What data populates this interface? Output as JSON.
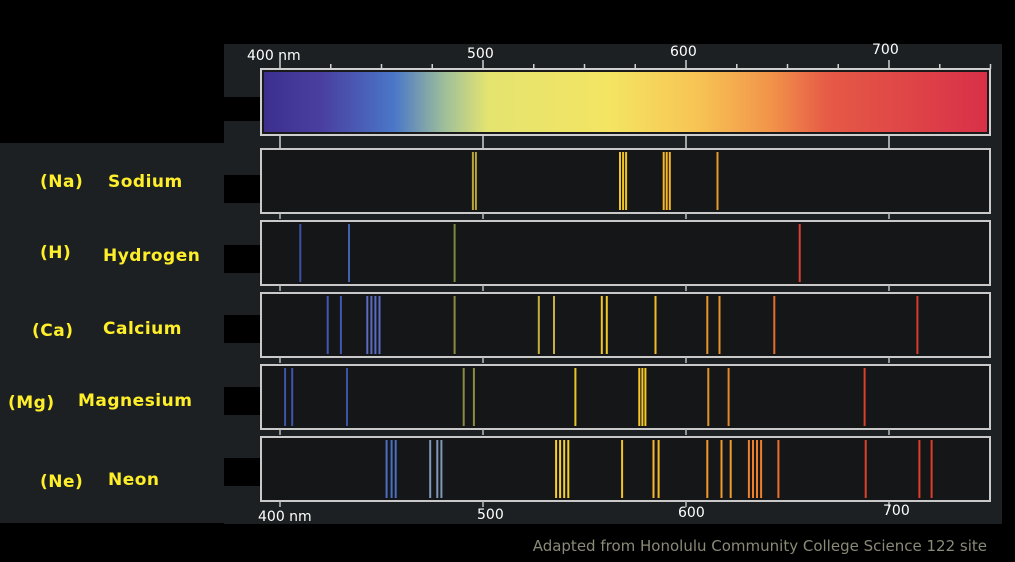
{
  "axis": {
    "top_labels": [
      "400 nm",
      "500",
      "600",
      "700"
    ],
    "bottom_labels": [
      "400 nm",
      "500",
      "600",
      "700"
    ],
    "tick_values": [
      400,
      500,
      600,
      700
    ]
  },
  "reference": {
    "name": "visible-spectrum",
    "nm_range": [
      400,
      750
    ]
  },
  "elements": [
    {
      "symbol": "(Na)",
      "name": "Sodium",
      "lines": [
        {
          "nm": 495,
          "color": "#b9a53a"
        },
        {
          "nm": 496.5,
          "color": "#b9a53a"
        },
        {
          "nm": 567.5,
          "color": "#f0c427"
        },
        {
          "nm": 569,
          "color": "#f0c427"
        },
        {
          "nm": 570.5,
          "color": "#f0c427"
        },
        {
          "nm": 589,
          "color": "#f5b628"
        },
        {
          "nm": 590.5,
          "color": "#f5b628"
        },
        {
          "nm": 592,
          "color": "#f5b628"
        },
        {
          "nm": 615.5,
          "color": "#e69a2c"
        }
      ]
    },
    {
      "symbol": "(H)",
      "name": "Hydrogen",
      "lines": [
        {
          "nm": 410,
          "color": "#3e4fa6"
        },
        {
          "nm": 434,
          "color": "#3f63ad"
        },
        {
          "nm": 486,
          "color": "#7a8a3c"
        },
        {
          "nm": 656,
          "color": "#d8412e"
        }
      ]
    },
    {
      "symbol": "(Ca)",
      "name": "Calcium",
      "lines": [
        {
          "nm": 423.5,
          "color": "#4257b2"
        },
        {
          "nm": 430,
          "color": "#4257b2"
        },
        {
          "nm": 443,
          "color": "#5a6bc0"
        },
        {
          "nm": 445,
          "color": "#5a6bc0"
        },
        {
          "nm": 447,
          "color": "#5a6bc0"
        },
        {
          "nm": 449,
          "color": "#5a6bc0"
        },
        {
          "nm": 486,
          "color": "#8c8a3e"
        },
        {
          "nm": 527.5,
          "color": "#c6b23a"
        },
        {
          "nm": 535,
          "color": "#c6b23a"
        },
        {
          "nm": 558.5,
          "color": "#f0c826"
        },
        {
          "nm": 561,
          "color": "#f0c826"
        },
        {
          "nm": 585,
          "color": "#f0bb2a"
        },
        {
          "nm": 610.5,
          "color": "#e9932c"
        },
        {
          "nm": 616.5,
          "color": "#e9932c"
        },
        {
          "nm": 643.5,
          "color": "#e36f2c"
        },
        {
          "nm": 714,
          "color": "#d63a2c"
        }
      ]
    },
    {
      "symbol": "(Mg)",
      "name": "Magnesium",
      "lines": [
        {
          "nm": 402.5,
          "color": "#3e55aa"
        },
        {
          "nm": 406,
          "color": "#3e55aa"
        },
        {
          "nm": 433,
          "color": "#3a55a8"
        },
        {
          "nm": 490.5,
          "color": "#8a8c40"
        },
        {
          "nm": 495.5,
          "color": "#8a8c40"
        },
        {
          "nm": 545.5,
          "color": "#e6c628"
        },
        {
          "nm": 577,
          "color": "#f5c726"
        },
        {
          "nm": 578.5,
          "color": "#f5c726"
        },
        {
          "nm": 580,
          "color": "#f5c726"
        },
        {
          "nm": 611,
          "color": "#e3932c"
        },
        {
          "nm": 621,
          "color": "#e3862c"
        },
        {
          "nm": 688,
          "color": "#d8402c"
        }
      ]
    },
    {
      "symbol": "(Ne)",
      "name": "Neon",
      "lines": [
        {
          "nm": 452.5,
          "color": "#4a6fc0"
        },
        {
          "nm": 455,
          "color": "#4a6fc0"
        },
        {
          "nm": 457,
          "color": "#4a6fc0"
        },
        {
          "nm": 474,
          "color": "#7f98b8"
        },
        {
          "nm": 477.5,
          "color": "#7f98b8"
        },
        {
          "nm": 479.5,
          "color": "#7f98b8"
        },
        {
          "nm": 536,
          "color": "#f5d02a"
        },
        {
          "nm": 538,
          "color": "#f5d02a"
        },
        {
          "nm": 540,
          "color": "#f5d02a"
        },
        {
          "nm": 542,
          "color": "#f5d02a"
        },
        {
          "nm": 568.5,
          "color": "#f5c228"
        },
        {
          "nm": 584,
          "color": "#f5b82a"
        },
        {
          "nm": 586.5,
          "color": "#f5b82a"
        },
        {
          "nm": 610.5,
          "color": "#ee9a2c"
        },
        {
          "nm": 617.5,
          "color": "#ee9a2c"
        },
        {
          "nm": 622,
          "color": "#ee9a2c"
        },
        {
          "nm": 631,
          "color": "#ee7f2c"
        },
        {
          "nm": 633,
          "color": "#ee7f2c"
        },
        {
          "nm": 635,
          "color": "#ee7f2c"
        },
        {
          "nm": 637,
          "color": "#ee7f2c"
        },
        {
          "nm": 645.5,
          "color": "#e8702c"
        },
        {
          "nm": 688.5,
          "color": "#dd432c"
        },
        {
          "nm": 715,
          "color": "#dd3e2c"
        },
        {
          "nm": 721,
          "color": "#dd3e2c"
        }
      ]
    }
  ],
  "credit": "Adapted from Honolulu Community College Science 122 site"
}
